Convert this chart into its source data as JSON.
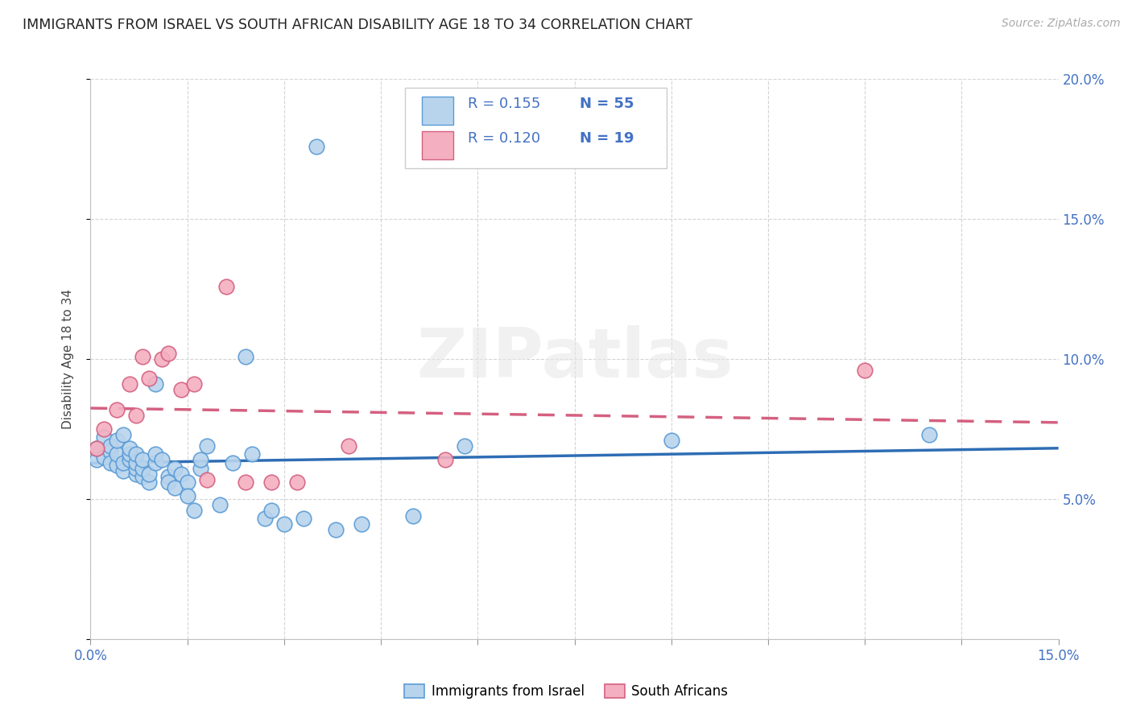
{
  "title": "IMMIGRANTS FROM ISRAEL VS SOUTH AFRICAN DISABILITY AGE 18 TO 34 CORRELATION CHART",
  "source": "Source: ZipAtlas.com",
  "ylabel": "Disability Age 18 to 34",
  "xlim": [
    0.0,
    0.15
  ],
  "ylim": [
    0.0,
    0.2
  ],
  "blue_R": 0.155,
  "blue_N": 55,
  "pink_R": 0.12,
  "pink_N": 19,
  "watermark": "ZIPatlas",
  "blue_color": "#b8d4ed",
  "blue_edge": "#5b9bd5",
  "pink_color": "#f4afc0",
  "pink_edge": "#d46080",
  "blue_line_color": "#2e6db4",
  "pink_line_color": "#d46080",
  "blue_x": [
    0.001,
    0.001,
    0.002,
    0.002,
    0.003,
    0.003,
    0.003,
    0.004,
    0.004,
    0.004,
    0.005,
    0.005,
    0.005,
    0.006,
    0.006,
    0.006,
    0.007,
    0.007,
    0.007,
    0.007,
    0.008,
    0.008,
    0.008,
    0.009,
    0.009,
    0.01,
    0.01,
    0.01,
    0.011,
    0.012,
    0.012,
    0.013,
    0.013,
    0.014,
    0.015,
    0.015,
    0.016,
    0.017,
    0.017,
    0.018,
    0.02,
    0.022,
    0.024,
    0.025,
    0.027,
    0.028,
    0.03,
    0.033,
    0.035,
    0.038,
    0.042,
    0.05,
    0.058,
    0.09,
    0.13
  ],
  "blue_y": [
    0.064,
    0.068,
    0.065,
    0.072,
    0.067,
    0.063,
    0.069,
    0.062,
    0.066,
    0.071,
    0.06,
    0.063,
    0.073,
    0.064,
    0.066,
    0.068,
    0.059,
    0.061,
    0.063,
    0.066,
    0.058,
    0.061,
    0.064,
    0.056,
    0.059,
    0.063,
    0.066,
    0.091,
    0.064,
    0.058,
    0.056,
    0.054,
    0.061,
    0.059,
    0.056,
    0.051,
    0.046,
    0.061,
    0.064,
    0.069,
    0.048,
    0.063,
    0.101,
    0.066,
    0.043,
    0.046,
    0.041,
    0.043,
    0.176,
    0.039,
    0.041,
    0.044,
    0.069,
    0.071,
    0.073
  ],
  "pink_x": [
    0.001,
    0.002,
    0.004,
    0.006,
    0.007,
    0.008,
    0.009,
    0.011,
    0.012,
    0.014,
    0.016,
    0.018,
    0.021,
    0.024,
    0.028,
    0.032,
    0.04,
    0.055,
    0.12
  ],
  "pink_y": [
    0.068,
    0.075,
    0.082,
    0.091,
    0.08,
    0.101,
    0.093,
    0.1,
    0.102,
    0.089,
    0.091,
    0.057,
    0.126,
    0.056,
    0.056,
    0.056,
    0.069,
    0.064,
    0.096
  ],
  "legend_label_blue": "Immigrants from Israel",
  "legend_label_pink": "South Africans"
}
